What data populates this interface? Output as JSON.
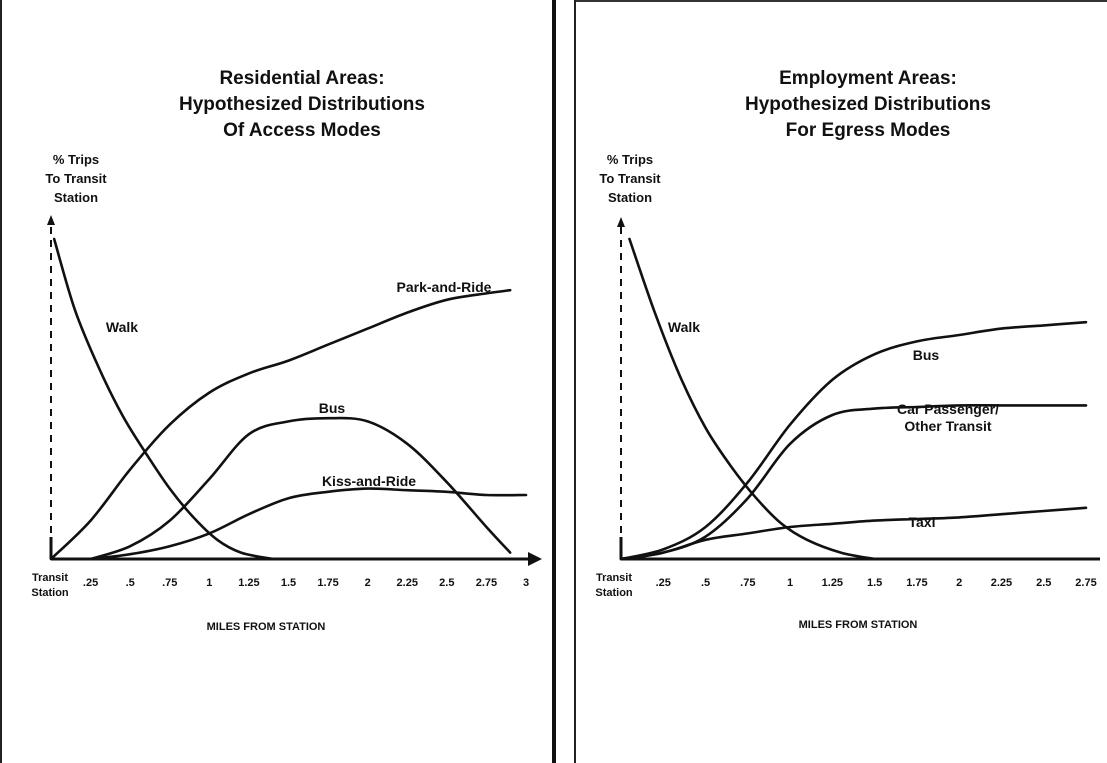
{
  "chart_data": [
    {
      "type": "line",
      "title": [
        "Residential Areas:",
        "Hypothesized Distributions",
        "Of Access Modes"
      ],
      "ylabel": [
        "% Trips",
        "To Transit",
        "Station"
      ],
      "xlabel": "MILES FROM STATION",
      "x_origin_label": [
        "Transit",
        "Station"
      ],
      "x_ticks": [
        ".25",
        ".5",
        ".75",
        "1",
        "1.25",
        "1.5",
        "1.75",
        "2",
        "2.25",
        "2.5",
        "2.75",
        "3"
      ],
      "xlim": [
        0,
        3
      ],
      "ylim": [
        0,
        100
      ],
      "series": [
        {
          "name": "Walk",
          "x": [
            0.02,
            0.15,
            0.3,
            0.45,
            0.6,
            0.75,
            0.9,
            1.05,
            1.2,
            1.4
          ],
          "y": [
            100,
            78,
            60,
            45,
            33,
            22,
            13,
            6,
            2,
            0
          ]
        },
        {
          "name": "Park-and-Ride",
          "x": [
            0,
            0.25,
            0.5,
            0.75,
            1,
            1.25,
            1.5,
            1.75,
            2,
            2.25,
            2.5,
            2.75,
            2.9
          ],
          "y": [
            0,
            12,
            28,
            42,
            52,
            58,
            62,
            67,
            72,
            77,
            81,
            83,
            84
          ]
        },
        {
          "name": "Bus",
          "x": [
            0.25,
            0.5,
            0.75,
            1,
            1.25,
            1.5,
            1.75,
            2,
            2.25,
            2.5,
            2.75,
            2.9
          ],
          "y": [
            0,
            4,
            12,
            25,
            39,
            43,
            44,
            43,
            36,
            24,
            10,
            2
          ]
        },
        {
          "name": "Kiss-and-Ride",
          "x": [
            0.25,
            0.5,
            0.75,
            1,
            1.25,
            1.5,
            1.75,
            2,
            2.25,
            2.5,
            2.75,
            3
          ],
          "y": [
            0,
            1.5,
            4,
            8,
            14,
            19,
            21,
            22,
            21.5,
            21,
            20,
            20
          ]
        }
      ]
    },
    {
      "type": "line",
      "title": [
        "Employment Areas:",
        "Hypothesized Distributions",
        "For Egress Modes"
      ],
      "ylabel": [
        "% Trips",
        "To Transit",
        "Station"
      ],
      "xlabel": "MILES FROM STATION",
      "x_origin_label": [
        "Transit",
        "Station"
      ],
      "x_ticks": [
        ".25",
        ".5",
        ".75",
        "1",
        "1.25",
        "1.5",
        "1.75",
        "2",
        "2.25",
        "2.5",
        "2.75"
      ],
      "xlim": [
        0,
        2.75
      ],
      "ylim": [
        0,
        100
      ],
      "series": [
        {
          "name": "Walk",
          "x": [
            0.05,
            0.2,
            0.35,
            0.5,
            0.65,
            0.8,
            0.95,
            1.1,
            1.3,
            1.5
          ],
          "y": [
            100,
            77,
            57,
            41,
            29,
            19,
            11,
            6,
            2,
            0
          ]
        },
        {
          "name": "Bus",
          "x": [
            0,
            0.25,
            0.5,
            0.75,
            1,
            1.25,
            1.5,
            1.75,
            2,
            2.25,
            2.5,
            2.75
          ],
          "y": [
            0,
            3,
            10,
            24,
            42,
            56,
            64,
            68,
            70,
            72,
            73,
            74
          ]
        },
        {
          "name": "Car Passenger/ Other Transit",
          "x": [
            0,
            0.25,
            0.5,
            0.75,
            1,
            1.25,
            1.5,
            1.75,
            2,
            2.25,
            2.5,
            2.75
          ],
          "y": [
            0,
            2,
            7,
            19,
            36,
            45,
            47,
            47.5,
            48,
            48,
            48,
            48
          ]
        },
        {
          "name": "Taxi",
          "x": [
            0,
            0.25,
            0.5,
            0.75,
            1,
            1.25,
            1.5,
            1.75,
            2,
            2.25,
            2.5,
            2.75
          ],
          "y": [
            0,
            2,
            6,
            8,
            10,
            11,
            12,
            12.5,
            13,
            14,
            15,
            16
          ]
        }
      ]
    }
  ]
}
